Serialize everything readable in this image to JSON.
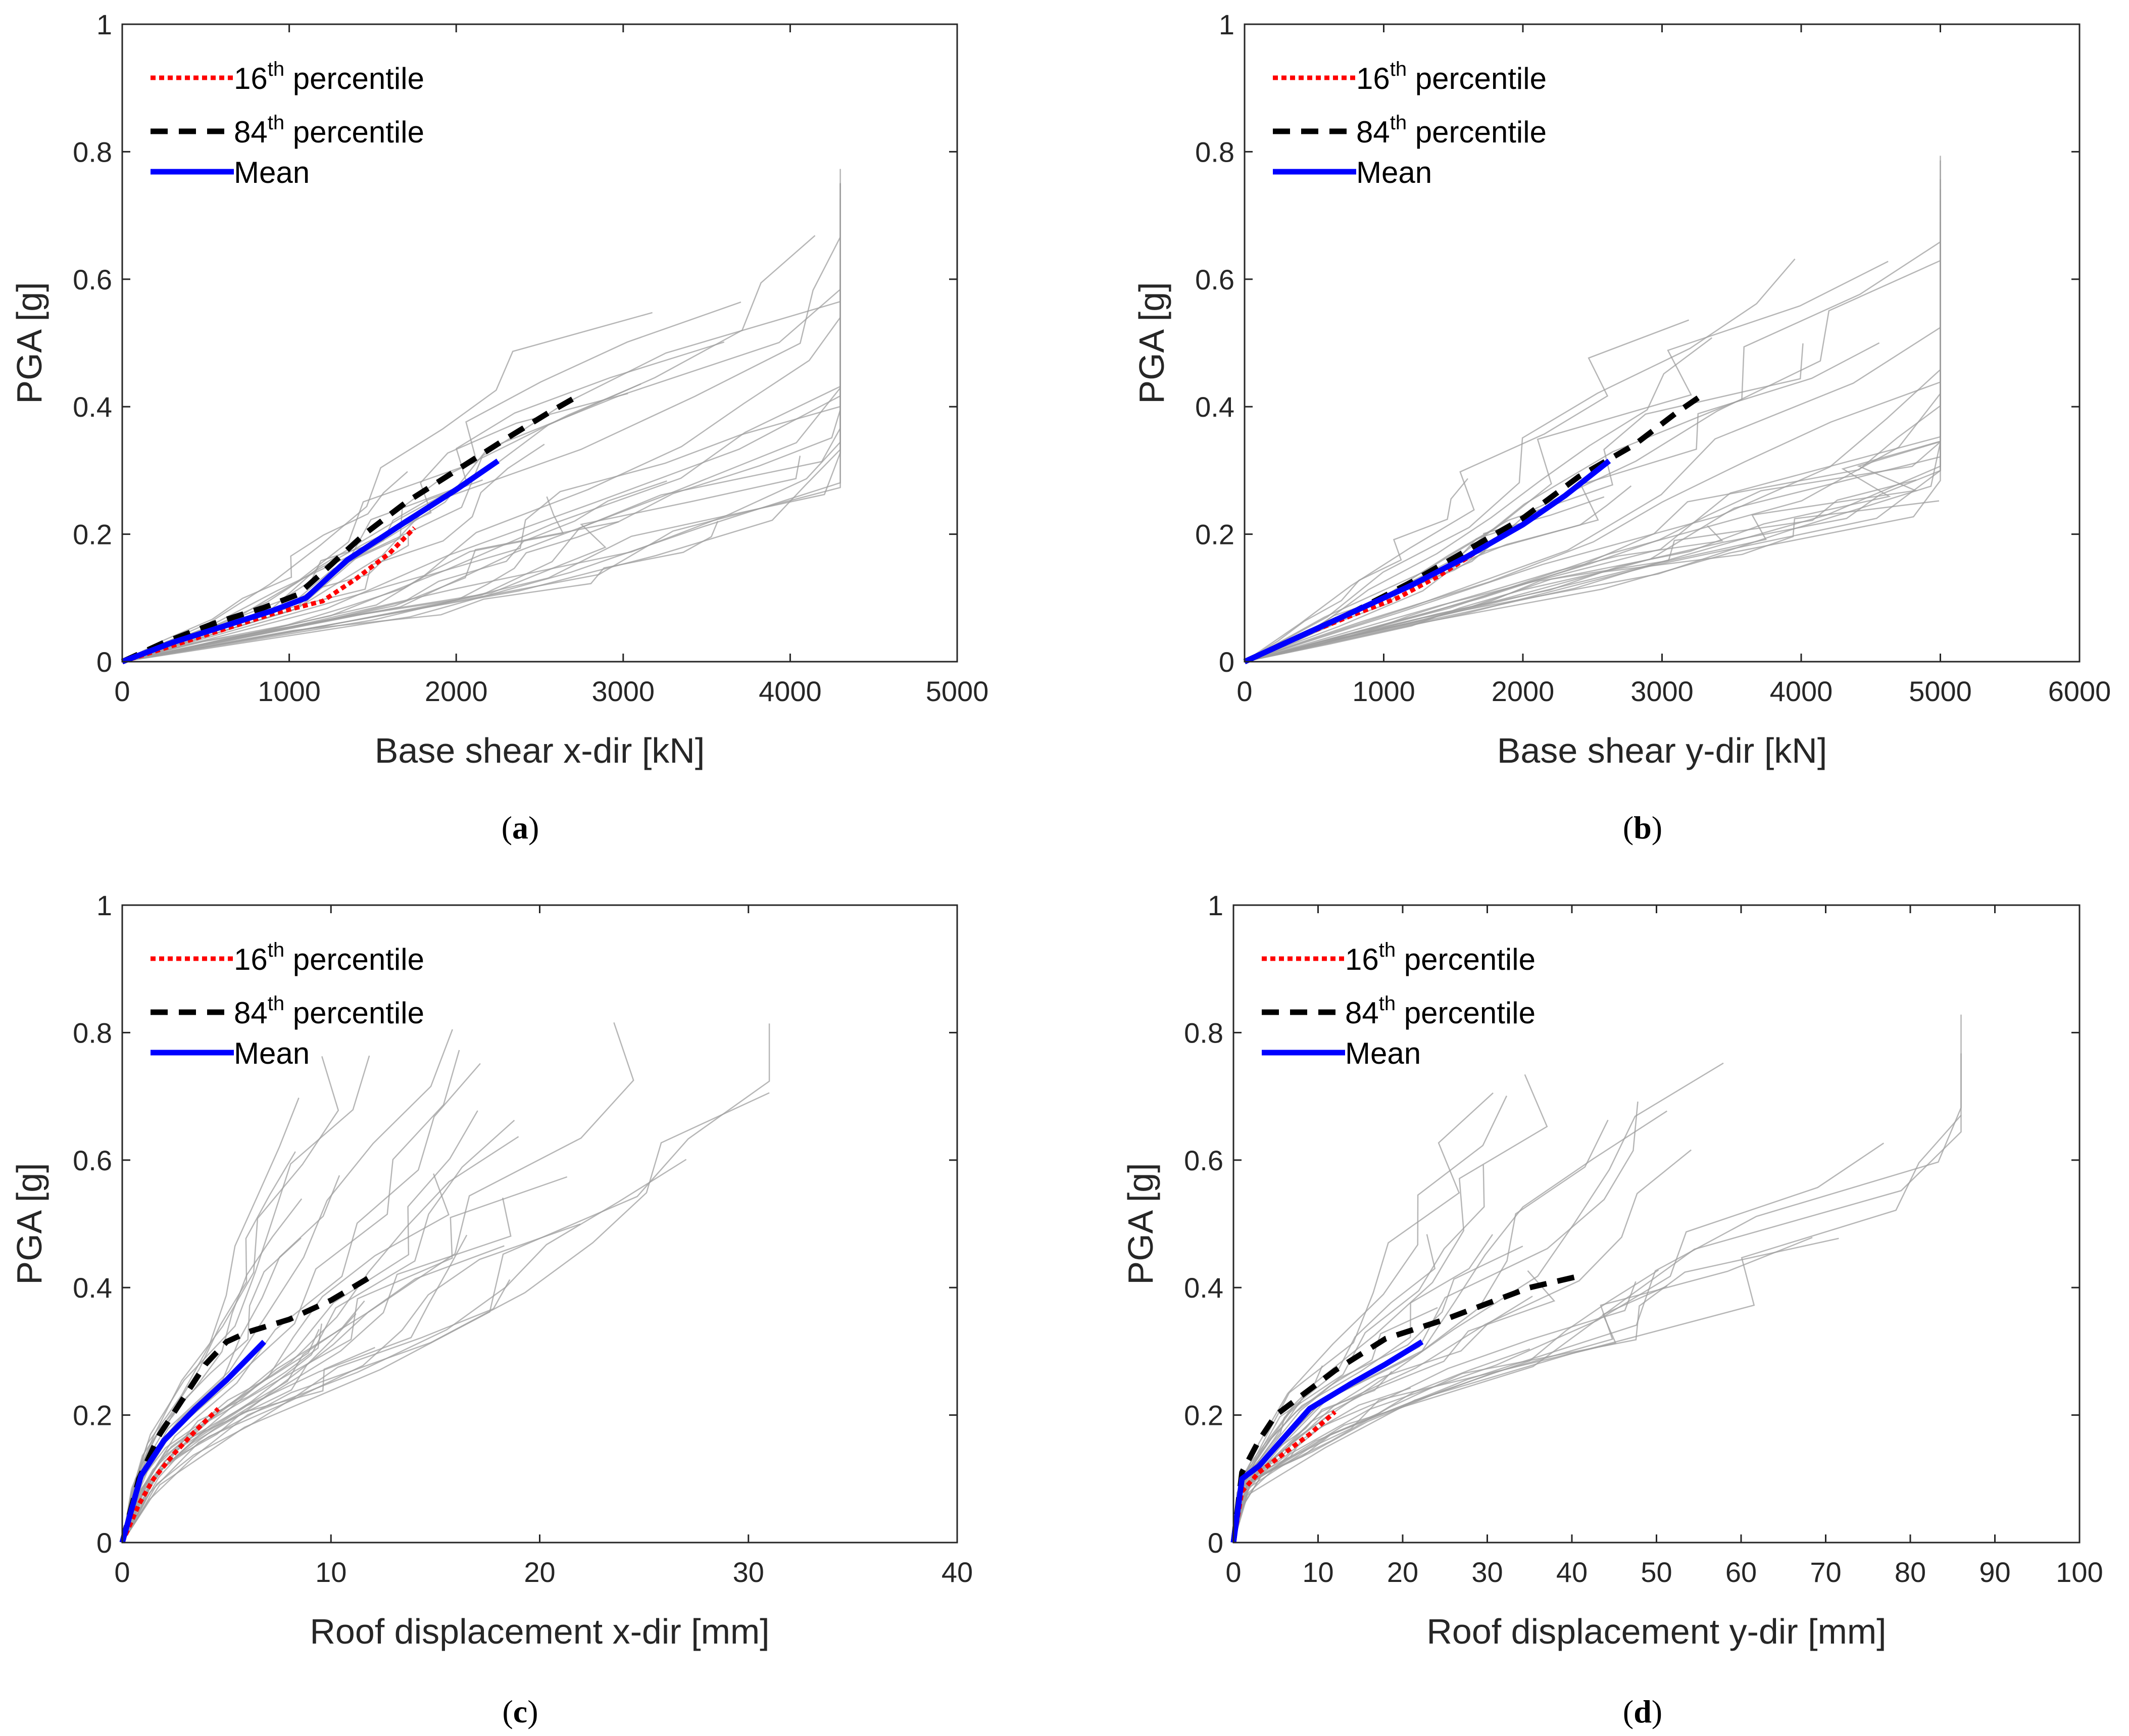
{
  "chart_data": [
    {
      "type": "line",
      "caption": "(a)",
      "caption_letter": "a",
      "xlabel": "Base shear x-dir [kN]",
      "ylabel": "PGA [g]",
      "xlim": [
        0,
        5000
      ],
      "ylim": [
        0,
        1
      ],
      "xticks": [
        0,
        1000,
        2000,
        3000,
        4000,
        5000
      ],
      "yticks": [
        0,
        0.2,
        0.4,
        0.6,
        0.8,
        1
      ],
      "grid": false,
      "legend": "top-left",
      "ida_curve_count": 30,
      "ida_curve_peak_x": 4300,
      "ida_curve_peak_y": 0.84,
      "series": [
        {
          "name": "16th percentile",
          "style": "dotted",
          "color": "#ff0000",
          "x": [
            0,
            300,
            600,
            900,
            1200,
            1400,
            1600,
            1750
          ],
          "y": [
            0,
            0.025,
            0.05,
            0.075,
            0.095,
            0.13,
            0.17,
            0.21
          ]
        },
        {
          "name": "84th percentile",
          "style": "dashed",
          "color": "#000000",
          "x": [
            0,
            250,
            550,
            850,
            1050,
            1200,
            1450,
            1700,
            2000,
            2300,
            2550,
            2750
          ],
          "y": [
            0,
            0.03,
            0.06,
            0.085,
            0.105,
            0.14,
            0.2,
            0.25,
            0.3,
            0.35,
            0.39,
            0.42
          ]
        },
        {
          "name": "Mean",
          "style": "solid",
          "color": "#0000ff",
          "x": [
            0,
            300,
            600,
            900,
            1100,
            1350,
            1700,
            2000,
            2250
          ],
          "y": [
            0,
            0.03,
            0.055,
            0.08,
            0.1,
            0.16,
            0.22,
            0.27,
            0.315
          ]
        }
      ]
    },
    {
      "type": "line",
      "caption": "(b)",
      "caption_letter": "b",
      "xlabel": "Base shear y-dir [kN]",
      "ylabel": "PGA [g]",
      "xlim": [
        0,
        6000
      ],
      "ylim": [
        0,
        1
      ],
      "xticks": [
        0,
        1000,
        2000,
        3000,
        4000,
        5000,
        6000
      ],
      "yticks": [
        0,
        0.2,
        0.4,
        0.6,
        0.8,
        1
      ],
      "grid": false,
      "legend": "top-left",
      "ida_curve_count": 30,
      "ida_curve_peak_x": 5000,
      "ida_curve_peak_y": 0.84,
      "series": [
        {
          "name": "16th percentile",
          "style": "dotted",
          "color": "#ff0000",
          "x": [
            0,
            400,
            800,
            1100,
            1400,
            1650,
            1900
          ],
          "y": [
            0,
            0.04,
            0.075,
            0.1,
            0.135,
            0.17,
            0.205
          ]
        },
        {
          "name": "84th percentile",
          "style": "dashed",
          "color": "#000000",
          "x": [
            0,
            400,
            800,
            1200,
            1600,
            2000,
            2400,
            2800,
            3100,
            3300
          ],
          "y": [
            0,
            0.04,
            0.08,
            0.125,
            0.175,
            0.225,
            0.29,
            0.34,
            0.39,
            0.42
          ]
        },
        {
          "name": "Mean",
          "style": "solid",
          "color": "#0000ff",
          "x": [
            0,
            400,
            800,
            1200,
            1600,
            2000,
            2300,
            2620
          ],
          "y": [
            0,
            0.04,
            0.08,
            0.12,
            0.165,
            0.215,
            0.26,
            0.315
          ]
        }
      ]
    },
    {
      "type": "line",
      "caption": "(c)",
      "caption_letter": "c",
      "xlabel": "Roof displacement x-dir [mm]",
      "ylabel": "PGA [g]",
      "xlim": [
        0,
        40
      ],
      "ylim": [
        0,
        1
      ],
      "xticks": [
        0,
        10,
        20,
        30,
        40
      ],
      "yticks": [
        0,
        0.2,
        0.4,
        0.6,
        0.8,
        1
      ],
      "grid": false,
      "legend": "top-left",
      "ida_curve_count": 30,
      "ida_curve_peak_x": 31,
      "ida_curve_peak_y": 0.84,
      "series": [
        {
          "name": "16th percentile",
          "style": "dotted",
          "color": "#ff0000",
          "x": [
            0,
            0.8,
            1.5,
            2.5,
            3.5,
            4.6
          ],
          "y": [
            0,
            0.06,
            0.1,
            0.14,
            0.175,
            0.21
          ]
        },
        {
          "name": "84th percentile",
          "style": "dashed",
          "color": "#000000",
          "x": [
            0,
            0.8,
            1.8,
            3,
            4,
            5,
            6,
            8,
            10,
            11.8
          ],
          "y": [
            0,
            0.1,
            0.17,
            0.23,
            0.28,
            0.315,
            0.33,
            0.35,
            0.38,
            0.415
          ]
        },
        {
          "name": "Mean",
          "style": "solid",
          "color": "#0000ff",
          "x": [
            0,
            0.9,
            2,
            3.5,
            5,
            6.8
          ],
          "y": [
            0,
            0.105,
            0.16,
            0.21,
            0.255,
            0.315
          ]
        }
      ]
    },
    {
      "type": "line",
      "caption": "(d)",
      "caption_letter": "d",
      "xlabel": "Roof displacement y-dir [mm]",
      "ylabel": "PGA [g]",
      "xlim": [
        0,
        100
      ],
      "ylim": [
        0,
        1
      ],
      "xticks": [
        0,
        10,
        20,
        30,
        40,
        50,
        60,
        70,
        80,
        90,
        100
      ],
      "yticks": [
        0,
        0.2,
        0.4,
        0.6,
        0.8,
        1
      ],
      "grid": false,
      "legend": "top-left",
      "ida_curve_count": 30,
      "ida_curve_peak_x": 86,
      "ida_curve_peak_y": 0.84,
      "series": [
        {
          "name": "16th percentile",
          "style": "dotted",
          "color": "#ff0000",
          "x": [
            0,
            1,
            3,
            6,
            9,
            12
          ],
          "y": [
            0,
            0.08,
            0.11,
            0.14,
            0.17,
            0.205
          ]
        },
        {
          "name": "84th percentile",
          "style": "dashed",
          "color": "#000000",
          "x": [
            0,
            1,
            3,
            5,
            8,
            12,
            18,
            25,
            35,
            41.5
          ],
          "y": [
            0,
            0.11,
            0.16,
            0.2,
            0.23,
            0.27,
            0.32,
            0.35,
            0.4,
            0.42
          ]
        },
        {
          "name": "Mean",
          "style": "solid",
          "color": "#0000ff",
          "x": [
            0,
            1,
            3,
            5,
            9,
            14,
            18,
            22.3
          ],
          "y": [
            0,
            0.1,
            0.12,
            0.15,
            0.21,
            0.25,
            0.28,
            0.315
          ]
        }
      ]
    }
  ]
}
